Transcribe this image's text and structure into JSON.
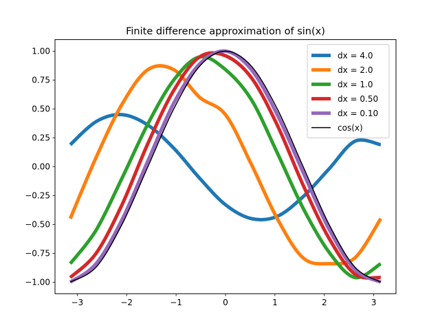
{
  "chart_data": {
    "type": "line",
    "title": "Finite difference approximation of sin(x)",
    "xlabel": "",
    "ylabel": "",
    "xlim": [
      -3.45,
      3.45
    ],
    "ylim": [
      -1.1,
      1.1
    ],
    "xticks": [
      -3,
      -2,
      -1,
      0,
      1,
      2,
      3
    ],
    "xtick_labels": [
      "−3",
      "−2",
      "−1",
      "0",
      "1",
      "2",
      "3"
    ],
    "yticks": [
      -1.0,
      -0.75,
      -0.5,
      -0.25,
      0.0,
      0.25,
      0.5,
      0.75,
      1.0
    ],
    "ytick_labels": [
      "−1.00",
      "−0.75",
      "−0.50",
      "−0.25",
      "0.00",
      "0.25",
      "0.50",
      "0.75",
      "1.00"
    ],
    "grid": false,
    "legend_position": "top-right",
    "x": [
      -3.1416,
      -2.618,
      -2.0944,
      -1.5708,
      -1.0472,
      -0.5236,
      0.0,
      0.5236,
      1.0472,
      1.5708,
      2.0944,
      2.618,
      3.1416
    ],
    "series": [
      {
        "name": "dx = 4.0",
        "color": "#1f77b4",
        "line_width": "thick",
        "values": [
          0.19,
          0.39,
          0.45,
          0.36,
          0.16,
          -0.1,
          -0.33,
          -0.45,
          -0.43,
          -0.26,
          -0.02,
          0.22,
          0.19
        ]
      },
      {
        "name": "dx = 2.0",
        "color": "#ff7f0e",
        "line_width": "thick",
        "values": [
          -0.45,
          0.08,
          0.54,
          0.84,
          0.84,
          0.6,
          0.45,
          0.02,
          -0.45,
          -0.79,
          -0.84,
          -0.79,
          -0.45
        ]
      },
      {
        "name": "dx = 1.0",
        "color": "#2ca02c",
        "line_width": "thick",
        "values": [
          -0.84,
          -0.55,
          -0.1,
          0.37,
          0.75,
          0.95,
          0.84,
          0.58,
          0.12,
          -0.36,
          -0.74,
          -0.96,
          -0.84
        ]
      },
      {
        "name": "dx = 0.50",
        "color": "#d62728",
        "line_width": "thick",
        "values": [
          -0.96,
          -0.75,
          -0.33,
          0.2,
          0.66,
          0.95,
          0.96,
          0.77,
          0.36,
          -0.16,
          -0.62,
          -0.93,
          -0.96
        ]
      },
      {
        "name": "dx = 0.10",
        "color": "#9467bd",
        "line_width": "thick",
        "values": [
          -1.0,
          -0.84,
          -0.46,
          0.05,
          0.55,
          0.89,
          1.0,
          0.84,
          0.45,
          -0.05,
          -0.54,
          -0.89,
          -1.0
        ]
      },
      {
        "name": "cos(x)",
        "color": "#000000",
        "line_width": "thin",
        "values": [
          -1.0,
          -0.87,
          -0.5,
          0.0,
          0.5,
          0.87,
          1.0,
          0.87,
          0.5,
          0.0,
          -0.5,
          -0.87,
          -1.0
        ]
      }
    ]
  }
}
